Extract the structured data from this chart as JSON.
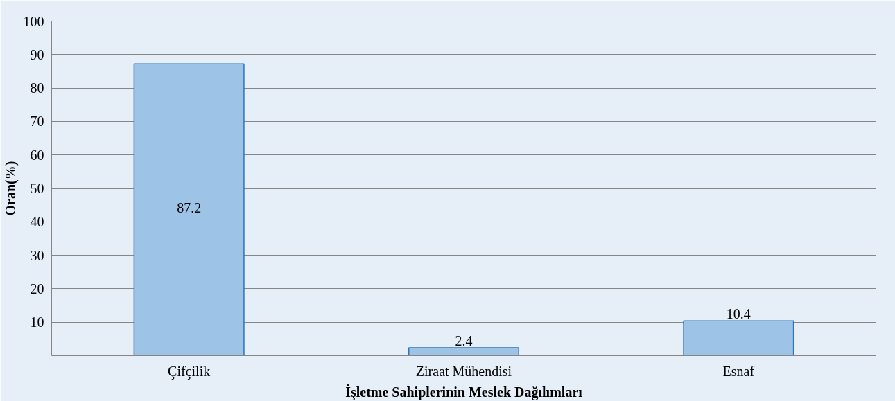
{
  "chart_data": {
    "type": "bar",
    "xlabel": "İşletme Sahiplerinin Meslek Dağılımları",
    "ylabel": "Oran(%)",
    "categories": [
      "Çifçilik",
      "Ziraat Mühendisi",
      "Esnaf"
    ],
    "values": [
      87.2,
      2.4,
      10.4
    ],
    "color": "#9dc3e6",
    "ylim": [
      0,
      100
    ],
    "yticks": [
      10,
      20,
      30,
      40,
      50,
      60,
      70,
      80,
      90,
      100
    ],
    "grid": "y",
    "data_labels": true
  }
}
